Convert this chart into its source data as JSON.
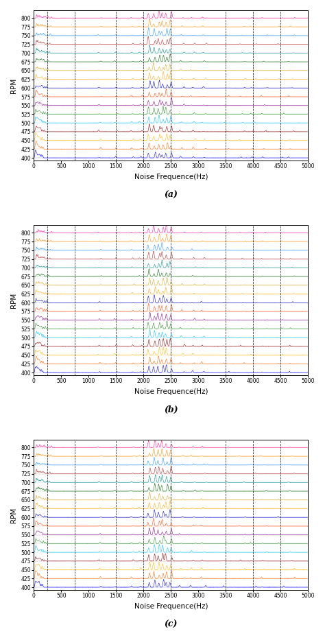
{
  "rpms": [
    400,
    425,
    450,
    475,
    500,
    525,
    550,
    575,
    600,
    625,
    650,
    675,
    700,
    725,
    750,
    775,
    800
  ],
  "freq_range": [
    0,
    5000
  ],
  "dashed_lines": [
    250,
    750,
    1500,
    2000,
    2500,
    3500,
    4000,
    4500
  ],
  "xlabel": "Noise Frequence(Hz)",
  "ylabel": "RPM",
  "subplot_labels": [
    "(a)",
    "(b)",
    "(c)"
  ],
  "xticks": [
    0,
    500,
    1000,
    1500,
    2000,
    2500,
    3000,
    3500,
    4000,
    4500,
    5000
  ],
  "rpm_colors": [
    "#0000FF",
    "#FF6600",
    "#FFB300",
    "#8B0000",
    "#00BFFF",
    "#228B22",
    "#8B008B",
    "#FF4500",
    "#0000CD",
    "#FFA500",
    "#DAA520",
    "#006400",
    "#008B8B",
    "#B22222",
    "#1E90FF",
    "#FF8C00",
    "#FF1493"
  ],
  "background": "#FFFFFF",
  "figsize": [
    4.74,
    9.3
  ],
  "dpi": 100,
  "n_points": 5000
}
